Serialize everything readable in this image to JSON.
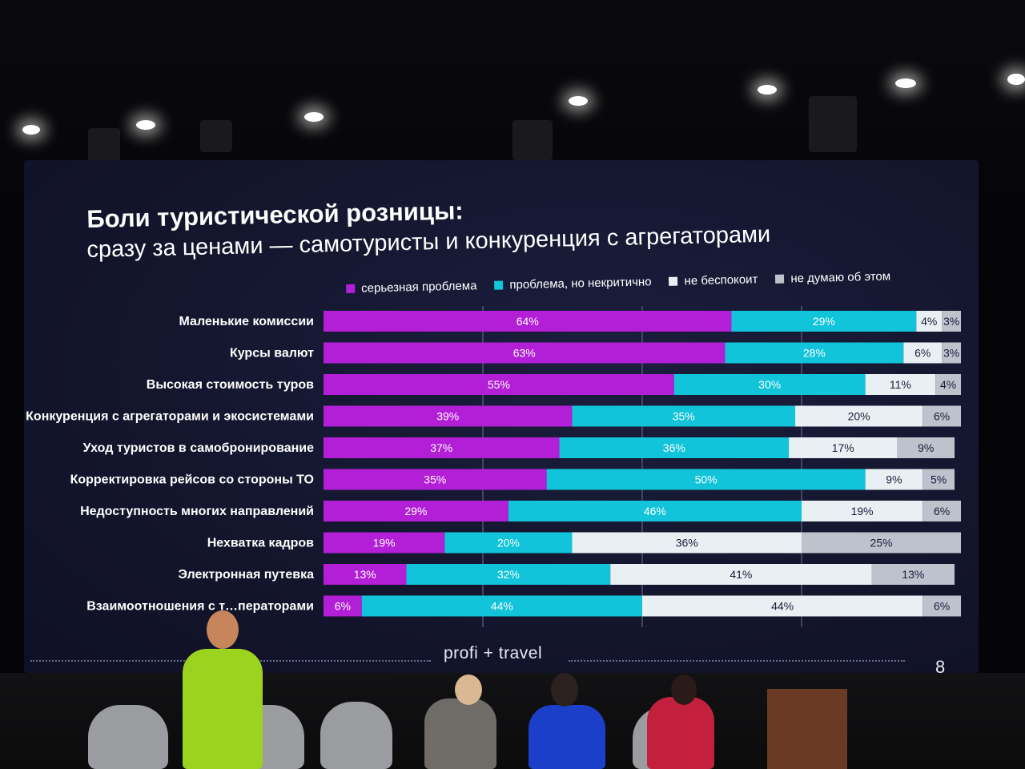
{
  "slide": {
    "title": "Боли туристической розницы:",
    "subtitle": "сразу за ценами — самотуристы и конкуренция с агрегаторами",
    "brand": "profi + travel",
    "page_number": "8"
  },
  "colors": {
    "serious": "#b21fd6",
    "minor": "#11c4d9",
    "no_worry": "#e9f0f4",
    "dont_think": "#bcc3cc"
  },
  "chart_data": {
    "type": "bar",
    "orientation": "horizontal",
    "stacked": true,
    "xlim": [
      0,
      100
    ],
    "legend_position": "top",
    "categories": [
      "Маленькие комиссии",
      "Курсы валют",
      "Высокая стоимость туров",
      "Конкуренция с агрегаторами и экосистемами",
      "Уход туристов в самобронирование",
      "Корректировка рейсов со стороны ТО",
      "Недоступность многих направлений",
      "Нехватка кадров",
      "Электронная путевка",
      "Взаимоотношения с т…ператорами"
    ],
    "series": [
      {
        "name": "серьезная проблема",
        "values": [
          64,
          63,
          55,
          39,
          37,
          35,
          29,
          19,
          13,
          6
        ]
      },
      {
        "name": "проблема, но некритично",
        "values": [
          29,
          28,
          30,
          35,
          36,
          50,
          46,
          20,
          32,
          44
        ]
      },
      {
        "name": "не беспокоит",
        "values": [
          4,
          6,
          11,
          20,
          17,
          9,
          19,
          36,
          41,
          44
        ]
      },
      {
        "name": "не думаю об этом",
        "values": [
          3,
          3,
          4,
          6,
          9,
          5,
          6,
          25,
          13,
          6
        ]
      }
    ]
  }
}
